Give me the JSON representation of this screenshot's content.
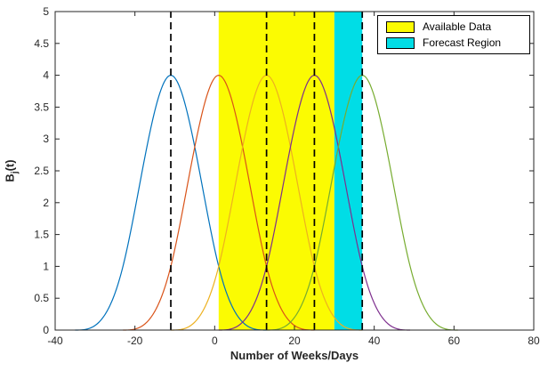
{
  "figure": {
    "background": "#ffffff"
  },
  "chart_data": {
    "type": "line",
    "title": "",
    "xlabel": "Number of Weeks/Days",
    "ylabel": "B_j(t)",
    "ylabel_parts": {
      "base": "B",
      "sub": "j",
      "rest": "(t)"
    },
    "xlim": [
      -40,
      80
    ],
    "ylim": [
      0,
      5
    ],
    "xticks": [
      "-40",
      "-20",
      "0",
      "20",
      "40",
      "60",
      "80"
    ],
    "yticks": [
      "0",
      "0.5",
      "1",
      "1.5",
      "2",
      "2.5",
      "3",
      "3.5",
      "4",
      "4.5",
      "5"
    ],
    "grid": false,
    "axis_color": "#262626",
    "regions": [
      {
        "label": "Available Data",
        "x0": 1,
        "x1": 30,
        "color": "#FBFB02"
      },
      {
        "label": "Forecast Region",
        "x0": 30,
        "x1": 37,
        "color": "#00DDE6"
      }
    ],
    "dashed_lines": {
      "x_positions": [
        -11,
        13,
        25,
        37
      ],
      "color": "#000000",
      "style": "dashed"
    },
    "basis": {
      "kind": "cubic-bspline",
      "knot_spacing": 12,
      "centers": [
        -11,
        1,
        13,
        25,
        37
      ],
      "peak": 4,
      "colors": [
        "#0072BD",
        "#D95319",
        "#EDB120",
        "#7E2F8E",
        "#77AC30"
      ]
    },
    "legend": {
      "position": "top-right",
      "entries": [
        {
          "label": "Available Data",
          "color": "#FBFB02"
        },
        {
          "label": "Forecast Region",
          "color": "#00DDE6"
        }
      ]
    }
  }
}
